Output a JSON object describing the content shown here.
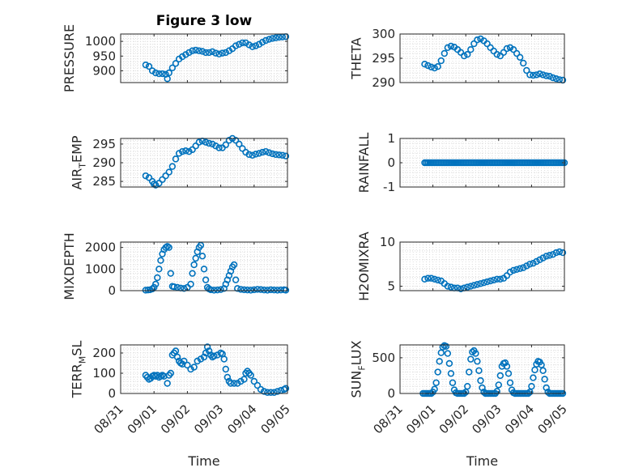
{
  "figure": {
    "title": "Figure 3 low"
  },
  "colors": {
    "marker": "#0072bd",
    "axis": "#262626",
    "grid": "#dcdcdc"
  },
  "chart_data": [
    {
      "id": "pressure",
      "type": "scatter",
      "title": "Figure 3 low",
      "ylabel": "PRESSURE",
      "xlabel": "",
      "xlim": [
        0,
        5
      ],
      "ylim": [
        860,
        1025
      ],
      "yticks": [
        900,
        950,
        1000
      ],
      "yticklabels": [
        "900",
        "950",
        "1000"
      ],
      "xtick_labels_visible": false,
      "x": [
        0.75,
        0.85,
        0.95,
        1.05,
        1.15,
        1.25,
        1.35,
        1.4,
        1.45,
        1.55,
        1.65,
        1.75,
        1.85,
        1.95,
        2.05,
        2.15,
        2.25,
        2.35,
        2.45,
        2.55,
        2.65,
        2.75,
        2.85,
        2.95,
        3.05,
        3.15,
        3.25,
        3.35,
        3.45,
        3.55,
        3.65,
        3.75,
        3.85,
        3.95,
        4.05,
        4.15,
        4.25,
        4.35,
        4.45,
        4.55,
        4.65,
        4.75,
        4.85,
        4.95
      ],
      "y": [
        920,
        915,
        900,
        893,
        890,
        890,
        888,
        873,
        893,
        910,
        925,
        940,
        948,
        955,
        962,
        968,
        970,
        968,
        966,
        962,
        962,
        965,
        960,
        957,
        960,
        962,
        968,
        975,
        985,
        990,
        995,
        995,
        988,
        982,
        985,
        990,
        997,
        1003,
        1007,
        1010,
        1012,
        1014,
        1015,
        1016
      ]
    },
    {
      "id": "theta",
      "type": "scatter",
      "ylabel": "THETA",
      "xlabel": "",
      "xlim": [
        0,
        5
      ],
      "ylim": [
        290,
        300
      ],
      "yticks": [
        290,
        295,
        300
      ],
      "yticklabels": [
        "290",
        "295",
        "300"
      ],
      "xtick_labels_visible": false,
      "x": [
        0.75,
        0.85,
        0.95,
        1.05,
        1.15,
        1.25,
        1.35,
        1.45,
        1.55,
        1.65,
        1.75,
        1.85,
        1.95,
        2.05,
        2.15,
        2.25,
        2.35,
        2.45,
        2.55,
        2.65,
        2.75,
        2.85,
        2.95,
        3.05,
        3.15,
        3.25,
        3.35,
        3.45,
        3.55,
        3.65,
        3.75,
        3.85,
        3.95,
        4.05,
        4.15,
        4.25,
        4.35,
        4.45,
        4.55,
        4.65,
        4.75,
        4.85,
        4.95
      ],
      "y": [
        293.8,
        293.5,
        293.2,
        293.0,
        293.3,
        294.5,
        296.0,
        297.2,
        297.5,
        297.3,
        296.8,
        296.2,
        295.5,
        295.8,
        296.8,
        298.0,
        298.8,
        299.0,
        298.6,
        298.0,
        297.2,
        296.5,
        295.8,
        295.5,
        296.2,
        297.0,
        297.2,
        296.8,
        296.0,
        295.2,
        294.0,
        292.5,
        291.6,
        291.5,
        291.6,
        291.8,
        291.6,
        291.4,
        291.3,
        291.0,
        290.8,
        290.6,
        290.5
      ]
    },
    {
      "id": "air_temp",
      "type": "scatter",
      "ylabel": "AIR",
      "ylabel_sub": "T",
      "ylabel_rest": "EMP",
      "xlabel": "",
      "xlim": [
        0,
        5
      ],
      "ylim": [
        283.5,
        296.5
      ],
      "yticks": [
        285,
        290,
        295
      ],
      "yticklabels": [
        "285",
        "290",
        "295"
      ],
      "xtick_labels_visible": false,
      "x": [
        0.75,
        0.85,
        0.95,
        1.0,
        1.05,
        1.15,
        1.25,
        1.35,
        1.45,
        1.55,
        1.65,
        1.75,
        1.85,
        1.95,
        2.05,
        2.15,
        2.25,
        2.35,
        2.45,
        2.55,
        2.65,
        2.75,
        2.85,
        2.95,
        3.05,
        3.15,
        3.25,
        3.35,
        3.45,
        3.55,
        3.65,
        3.75,
        3.85,
        3.95,
        4.05,
        4.15,
        4.25,
        4.35,
        4.45,
        4.55,
        4.65,
        4.75,
        4.85,
        4.95
      ],
      "y": [
        286.5,
        286.0,
        285.0,
        284.3,
        284.0,
        284.5,
        285.5,
        286.5,
        287.5,
        289.0,
        291.0,
        292.5,
        293.0,
        293.2,
        293.0,
        293.5,
        294.5,
        295.5,
        295.8,
        295.5,
        295.2,
        295.0,
        294.5,
        294.0,
        294.0,
        294.8,
        296.0,
        296.5,
        296.0,
        295.0,
        293.8,
        292.8,
        292.2,
        292.0,
        292.3,
        292.5,
        292.8,
        293.0,
        292.7,
        292.4,
        292.2,
        292.1,
        292.0,
        291.8
      ]
    },
    {
      "id": "rainfall",
      "type": "scatter",
      "ylabel": "RAINFALL",
      "xlabel": "",
      "xlim": [
        0,
        5
      ],
      "ylim": [
        -1,
        1
      ],
      "yticks": [
        -1,
        0,
        1
      ],
      "yticklabels": [
        "-1",
        "0",
        "1"
      ],
      "xtick_labels_visible": false,
      "x_range": [
        0.75,
        5.0
      ],
      "x_step": 0.05,
      "constant_y": 0
    },
    {
      "id": "mixdepth",
      "type": "scatter",
      "ylabel": "MIXDEPTH",
      "xlabel": "",
      "xlim": [
        0,
        5
      ],
      "ylim": [
        0,
        2250
      ],
      "yticks": [
        0,
        1000,
        2000
      ],
      "yticklabels": [
        "0",
        "1000",
        "2000"
      ],
      "xtick_labels_visible": false,
      "x": [
        0.75,
        0.82,
        0.88,
        0.95,
        1.0,
        1.05,
        1.1,
        1.15,
        1.2,
        1.25,
        1.3,
        1.35,
        1.4,
        1.45,
        1.5,
        1.55,
        1.6,
        1.7,
        1.8,
        1.9,
        2.0,
        2.1,
        2.15,
        2.2,
        2.25,
        2.3,
        2.35,
        2.4,
        2.45,
        2.5,
        2.55,
        2.6,
        2.65,
        2.7,
        2.8,
        2.9,
        3.0,
        3.1,
        3.15,
        3.2,
        3.25,
        3.3,
        3.35,
        3.4,
        3.45,
        3.5,
        3.6,
        3.7,
        3.8,
        3.9,
        4.0,
        4.1,
        4.2,
        4.3,
        4.4,
        4.5,
        4.6,
        4.7,
        4.8,
        4.9,
        4.95
      ],
      "y": [
        20,
        30,
        40,
        80,
        150,
        300,
        600,
        1000,
        1400,
        1700,
        1900,
        2000,
        2050,
        2000,
        800,
        200,
        180,
        150,
        120,
        100,
        150,
        300,
        800,
        1200,
        1500,
        1800,
        2000,
        2100,
        1600,
        1000,
        500,
        150,
        80,
        40,
        20,
        30,
        50,
        100,
        300,
        500,
        700,
        900,
        1100,
        1200,
        500,
        100,
        60,
        40,
        30,
        20,
        40,
        60,
        50,
        30,
        20,
        40,
        30,
        20,
        30,
        40,
        20
      ]
    },
    {
      "id": "h2omixra",
      "type": "scatter",
      "ylabel": "H2OMIXRA",
      "xlabel": "",
      "xlim": [
        0,
        5
      ],
      "ylim": [
        4.5,
        10
      ],
      "yticks": [
        5,
        10
      ],
      "yticklabels": [
        "5",
        "10"
      ],
      "xtick_labels_visible": false,
      "x": [
        0.75,
        0.85,
        0.95,
        1.05,
        1.15,
        1.25,
        1.35,
        1.45,
        1.55,
        1.65,
        1.75,
        1.85,
        1.95,
        2.05,
        2.15,
        2.25,
        2.35,
        2.45,
        2.55,
        2.65,
        2.75,
        2.85,
        2.95,
        3.05,
        3.15,
        3.25,
        3.35,
        3.45,
        3.55,
        3.65,
        3.75,
        3.85,
        3.95,
        4.05,
        4.15,
        4.25,
        4.35,
        4.45,
        4.55,
        4.65,
        4.75,
        4.85,
        4.95
      ],
      "y": [
        5.8,
        5.9,
        5.9,
        5.8,
        5.7,
        5.6,
        5.3,
        5.0,
        4.9,
        4.8,
        4.8,
        4.7,
        4.8,
        4.9,
        5.0,
        5.1,
        5.2,
        5.3,
        5.4,
        5.5,
        5.6,
        5.7,
        5.8,
        5.8,
        5.9,
        6.2,
        6.6,
        6.8,
        6.9,
        7.0,
        7.1,
        7.3,
        7.5,
        7.6,
        7.8,
        8.0,
        8.2,
        8.4,
        8.5,
        8.6,
        8.8,
        8.9,
        8.8
      ]
    },
    {
      "id": "terr_msl",
      "type": "scatter",
      "ylabel": "TERR",
      "ylabel_sub": "M",
      "ylabel_rest": "SL",
      "xlabel": "Time",
      "xlim": [
        0,
        5
      ],
      "ylim": [
        0,
        240
      ],
      "yticks": [
        0,
        100,
        200
      ],
      "yticklabels": [
        "0",
        "100",
        "200"
      ],
      "xticks": [
        0,
        1,
        2,
        3,
        4,
        5
      ],
      "xticklabels": [
        "08/31",
        "09/01",
        "09/02",
        "09/03",
        "09/04",
        "09/05"
      ],
      "x": [
        0.75,
        0.8,
        0.85,
        0.9,
        0.95,
        1.0,
        1.05,
        1.1,
        1.15,
        1.2,
        1.25,
        1.3,
        1.4,
        1.45,
        1.5,
        1.55,
        1.6,
        1.65,
        1.7,
        1.75,
        1.8,
        1.85,
        1.9,
        2.0,
        2.1,
        2.2,
        2.3,
        2.4,
        2.5,
        2.55,
        2.6,
        2.65,
        2.7,
        2.75,
        2.8,
        2.9,
        3.0,
        3.05,
        3.1,
        3.15,
        3.2,
        3.25,
        3.3,
        3.4,
        3.5,
        3.6,
        3.7,
        3.75,
        3.8,
        3.85,
        3.9,
        4.0,
        4.1,
        4.2,
        4.3,
        4.4,
        4.5,
        4.6,
        4.7,
        4.8,
        4.9,
        4.95
      ],
      "y": [
        90,
        80,
        70,
        75,
        85,
        90,
        85,
        90,
        80,
        85,
        90,
        85,
        50,
        90,
        100,
        190,
        200,
        210,
        180,
        160,
        150,
        145,
        160,
        140,
        120,
        130,
        160,
        170,
        180,
        200,
        230,
        210,
        190,
        180,
        185,
        190,
        200,
        195,
        170,
        120,
        80,
        60,
        50,
        50,
        50,
        60,
        70,
        100,
        110,
        100,
        90,
        60,
        40,
        20,
        10,
        5,
        5,
        5,
        10,
        15,
        20,
        25
      ]
    },
    {
      "id": "sun_flux",
      "type": "scatter",
      "ylabel": "SUN",
      "ylabel_sub": "F",
      "ylabel_rest": "LUX",
      "xlabel": "Time",
      "xlim": [
        0,
        5
      ],
      "ylim": [
        0,
        680
      ],
      "yticks": [
        0,
        500
      ],
      "yticklabels": [
        "0",
        "500"
      ],
      "xticks": [
        0,
        1,
        2,
        3,
        4,
        5
      ],
      "xticklabels": [
        "08/31",
        "09/01",
        "09/02",
        "09/03",
        "09/04",
        "09/05"
      ],
      "x": [
        0.7,
        0.75,
        0.8,
        0.85,
        0.9,
        0.95,
        1.0,
        1.05,
        1.1,
        1.15,
        1.2,
        1.25,
        1.3,
        1.35,
        1.4,
        1.45,
        1.5,
        1.55,
        1.6,
        1.65,
        1.7,
        1.75,
        1.8,
        1.85,
        1.9,
        1.95,
        2.0,
        2.05,
        2.1,
        2.15,
        2.2,
        2.25,
        2.3,
        2.35,
        2.4,
        2.45,
        2.5,
        2.55,
        2.6,
        2.65,
        2.7,
        2.75,
        2.8,
        2.85,
        2.9,
        2.95,
        3.0,
        3.05,
        3.1,
        3.15,
        3.2,
        3.25,
        3.3,
        3.35,
        3.4,
        3.45,
        3.5,
        3.55,
        3.6,
        3.65,
        3.7,
        3.75,
        3.8,
        3.85,
        3.9,
        3.95,
        4.0,
        4.05,
        4.1,
        4.15,
        4.2,
        4.25,
        4.3,
        4.35,
        4.4,
        4.45,
        4.5,
        4.55,
        4.6,
        4.65,
        4.7,
        4.75,
        4.8,
        4.85,
        4.9,
        4.95
      ],
      "y": [
        0,
        0,
        0,
        0,
        0,
        0,
        20,
        60,
        150,
        300,
        450,
        570,
        650,
        670,
        660,
        560,
        420,
        280,
        150,
        50,
        10,
        0,
        0,
        0,
        0,
        0,
        20,
        100,
        300,
        480,
        580,
        600,
        560,
        450,
        320,
        180,
        80,
        20,
        0,
        0,
        0,
        0,
        0,
        0,
        0,
        30,
        120,
        250,
        380,
        420,
        430,
        380,
        280,
        150,
        50,
        10,
        0,
        0,
        0,
        0,
        0,
        0,
        0,
        0,
        0,
        20,
        100,
        220,
        330,
        410,
        450,
        440,
        400,
        320,
        200,
        80,
        20,
        0,
        0,
        0,
        0,
        0,
        0,
        0,
        0,
        0
      ]
    }
  ]
}
